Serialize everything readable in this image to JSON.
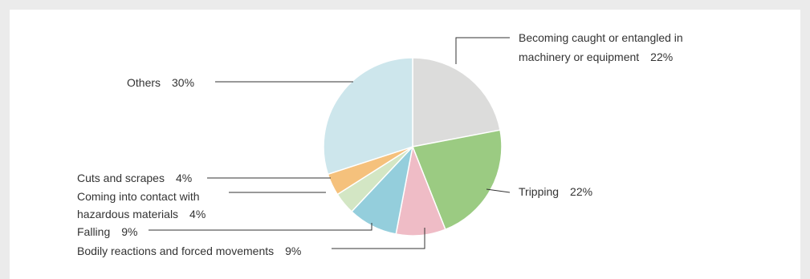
{
  "chart_data": {
    "type": "pie",
    "title": "",
    "start_angle_deg": 0,
    "direction": "clockwise",
    "slices": [
      {
        "label": "Becoming caught or entangled in machinery or equipment",
        "label_lines": [
          "Becoming caught or entangled in",
          "machinery or equipment"
        ],
        "value": 22,
        "value_text": "22%",
        "color": "#dcdcdb"
      },
      {
        "label": "Tripping",
        "label_lines": [
          "Tripping"
        ],
        "value": 22,
        "value_text": "22%",
        "color": "#9bcb82"
      },
      {
        "label": "Bodily reactions and forced movements",
        "label_lines": [
          "Bodily reactions and forced movements"
        ],
        "value": 9,
        "value_text": "9%",
        "color": "#efbcc6"
      },
      {
        "label": "Falling",
        "label_lines": [
          "Falling"
        ],
        "value": 9,
        "value_text": "9%",
        "color": "#94cedc"
      },
      {
        "label": "Coming into contact with hazardous materials",
        "label_lines": [
          "Coming into contact with",
          "hazardous materials"
        ],
        "value": 4,
        "value_text": "4%",
        "color": "#d3e6c4"
      },
      {
        "label": "Cuts and scrapes",
        "label_lines": [
          "Cuts and scrapes"
        ],
        "value": 4,
        "value_text": "4%",
        "color": "#f5c17c"
      },
      {
        "label": "Others",
        "label_lines": [
          "Others"
        ],
        "value": 30,
        "value_text": "30%",
        "color": "#cde6ec"
      }
    ]
  }
}
